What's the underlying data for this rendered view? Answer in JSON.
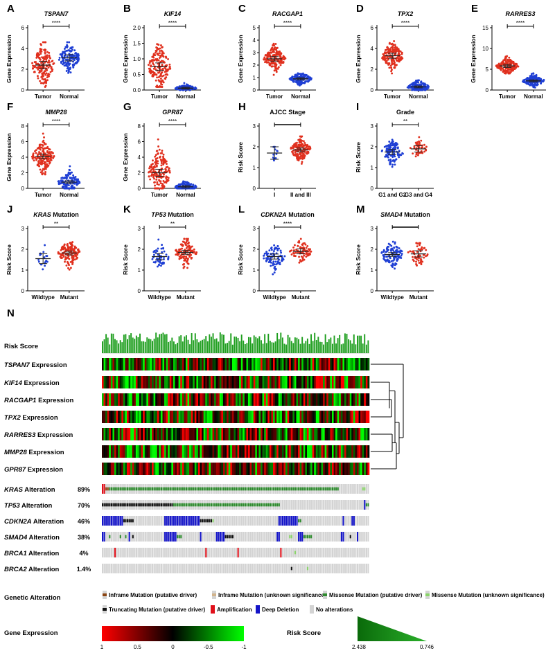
{
  "colors": {
    "tumor": "#e0301e",
    "normal": "#1f3fd4",
    "group1": "#1f3fd4",
    "group2": "#e0301e",
    "mean_bar": "#222222",
    "expr_high": "#ff0000",
    "expr_mid": "#000000",
    "expr_low": "#00ff00",
    "risk_bar": "#1e9e1e",
    "alt_missense": "#2e8b2e",
    "alt_missense_unknown": "#8ad36a",
    "alt_truncating": "#111111",
    "alt_amplification": "#e0101a",
    "alt_deletion": "#1414c8",
    "alt_none": "#d3d3d3",
    "alt_inframe": "#8b4513",
    "alt_inframe_unknown": "#d2b48c"
  },
  "chart_data": [
    {
      "panel": "A",
      "type": "scatter",
      "title": "TSPAN7",
      "title_italic": true,
      "ylabel": "Gene Expression",
      "categories": [
        "Tumor",
        "Normal"
      ],
      "ylim": [
        0,
        6
      ],
      "yticks": [
        "0",
        "2",
        "4",
        "6"
      ],
      "means": [
        2.4,
        3.1
      ],
      "sems": [
        0.12,
        0.1
      ],
      "spreads": [
        1.0,
        0.6
      ],
      "range_low": [
        0.3,
        1.2
      ],
      "range_high": [
        4.6,
        4.6
      ],
      "n": [
        170,
        140
      ],
      "significance": "****"
    },
    {
      "panel": "B",
      "type": "scatter",
      "title": "KIF14",
      "title_italic": true,
      "ylabel": "Gene Expression",
      "categories": [
        "Tumor",
        "Normal"
      ],
      "ylim": [
        0,
        2.0
      ],
      "yticks": [
        "0.0",
        "0.5",
        "1.0",
        "1.5",
        "2.0"
      ],
      "means": [
        0.75,
        0.06
      ],
      "sems": [
        0.04,
        0.01
      ],
      "spreads": [
        0.35,
        0.05
      ],
      "range_low": [
        0.1,
        0.0
      ],
      "range_high": [
        1.9,
        0.4
      ],
      "n": [
        170,
        140
      ],
      "significance": "****"
    },
    {
      "panel": "C",
      "type": "scatter",
      "title": "RACGAP1",
      "title_italic": true,
      "ylabel": "Gene Expression",
      "categories": [
        "Tumor",
        "Normal"
      ],
      "ylim": [
        0,
        5
      ],
      "yticks": [
        "0",
        "1",
        "2",
        "3",
        "4",
        "5"
      ],
      "means": [
        2.5,
        0.9
      ],
      "sems": [
        0.06,
        0.03
      ],
      "spreads": [
        0.45,
        0.25
      ],
      "range_low": [
        1.2,
        0.3
      ],
      "range_high": [
        4.3,
        2.0
      ],
      "n": [
        170,
        140
      ],
      "significance": "****"
    },
    {
      "panel": "D",
      "type": "scatter",
      "title": "TPX2",
      "title_italic": true,
      "ylabel": "Gene Expression",
      "categories": [
        "Tumor",
        "Normal"
      ],
      "ylim": [
        0,
        6
      ],
      "yticks": [
        "0",
        "2",
        "4",
        "6"
      ],
      "means": [
        3.3,
        0.3
      ],
      "sems": [
        0.08,
        0.03
      ],
      "spreads": [
        0.6,
        0.3
      ],
      "range_low": [
        1.0,
        0.0
      ],
      "range_high": [
        5.2,
        2.9
      ],
      "n": [
        170,
        140
      ],
      "significance": "****"
    },
    {
      "panel": "E",
      "type": "scatter",
      "title": "RARRES3",
      "title_italic": true,
      "ylabel": "Gene Expression",
      "categories": [
        "Tumor",
        "Normal"
      ],
      "ylim": [
        0,
        15
      ],
      "yticks": [
        "0",
        "5",
        "10",
        "15"
      ],
      "means": [
        5.8,
        2.2
      ],
      "sems": [
        0.12,
        0.08
      ],
      "spreads": [
        0.9,
        0.7
      ],
      "range_low": [
        4.0,
        0.6
      ],
      "range_high": [
        9.6,
        6.0
      ],
      "n": [
        170,
        140
      ],
      "significance": "****"
    },
    {
      "panel": "F",
      "type": "scatter",
      "title": "MMP28",
      "title_italic": true,
      "ylabel": "Gene Expression",
      "categories": [
        "Tumor",
        "Normal"
      ],
      "ylim": [
        0,
        8
      ],
      "yticks": [
        "0",
        "2",
        "4",
        "6",
        "8"
      ],
      "means": [
        4.1,
        0.8
      ],
      "sems": [
        0.1,
        0.06
      ],
      "spreads": [
        0.9,
        0.6
      ],
      "range_low": [
        1.8,
        0.0
      ],
      "range_high": [
        7.2,
        4.2
      ],
      "n": [
        170,
        140
      ],
      "significance": "****"
    },
    {
      "panel": "G",
      "type": "scatter",
      "title": "GPR87",
      "title_italic": true,
      "ylabel": "Gene Expression",
      "categories": [
        "Tumor",
        "Normal"
      ],
      "ylim": [
        0,
        8
      ],
      "yticks": [
        "0",
        "2",
        "4",
        "6",
        "8"
      ],
      "means": [
        2.0,
        0.2
      ],
      "sems": [
        0.15,
        0.05
      ],
      "spreads": [
        1.5,
        0.3
      ],
      "range_low": [
        0.0,
        0.0
      ],
      "range_high": [
        7.0,
        2.0
      ],
      "n": [
        170,
        140
      ],
      "significance": "****"
    },
    {
      "panel": "H",
      "type": "scatter",
      "title": "AJCC Stage",
      "title_italic": false,
      "ylabel": "Risk Score",
      "categories": [
        "I",
        "II and III"
      ],
      "ylim": [
        0,
        3
      ],
      "yticks": [
        "0",
        "1",
        "2",
        "3"
      ],
      "means": [
        1.7,
        1.85
      ],
      "sems": [
        0.1,
        0.03
      ],
      "spreads": [
        0.2,
        0.25
      ],
      "range_low": [
        1.3,
        0.8
      ],
      "range_high": [
        2.0,
        2.5
      ],
      "n": [
        12,
        150
      ],
      "significance": ""
    },
    {
      "panel": "I",
      "type": "scatter",
      "title": "Grade",
      "title_italic": false,
      "ylabel": "Risk Score",
      "categories": [
        "G1 and G2",
        "G3 and G4"
      ],
      "ylim": [
        0,
        3
      ],
      "yticks": [
        "0",
        "1",
        "2",
        "3"
      ],
      "means": [
        1.75,
        1.9
      ],
      "sems": [
        0.04,
        0.05
      ],
      "spreads": [
        0.28,
        0.22
      ],
      "range_low": [
        0.9,
        1.2
      ],
      "range_high": [
        2.6,
        2.5
      ],
      "n": [
        110,
        45
      ],
      "significance": "**"
    },
    {
      "panel": "J",
      "type": "scatter",
      "title": "KRAS",
      "title_suffix": " Mutation",
      "title_italic": true,
      "ylabel": "Risk Score",
      "categories": [
        "Wildtype",
        "Mutant"
      ],
      "ylim": [
        0,
        3
      ],
      "yticks": [
        "0",
        "1",
        "2",
        "3"
      ],
      "means": [
        1.55,
        1.82
      ],
      "sems": [
        0.08,
        0.03
      ],
      "spreads": [
        0.3,
        0.3
      ],
      "range_low": [
        1.0,
        0.8
      ],
      "range_high": [
        2.2,
        2.6
      ],
      "n": [
        18,
        150
      ],
      "significance": "**"
    },
    {
      "panel": "K",
      "type": "scatter",
      "title": "TP53",
      "title_suffix": " Mutation",
      "title_italic": true,
      "ylabel": "Risk Score",
      "categories": [
        "Wildtype",
        "Mutant"
      ],
      "ylim": [
        0,
        3
      ],
      "yticks": [
        "0",
        "1",
        "2",
        "3"
      ],
      "means": [
        1.65,
        1.85
      ],
      "sems": [
        0.05,
        0.03
      ],
      "spreads": [
        0.3,
        0.28
      ],
      "range_low": [
        0.8,
        0.8
      ],
      "range_high": [
        2.5,
        2.5
      ],
      "n": [
        50,
        120
      ],
      "significance": "**"
    },
    {
      "panel": "L",
      "type": "scatter",
      "title": "CDKN2A",
      "title_suffix": " Mutation",
      "title_italic": true,
      "ylabel": "Risk Score",
      "categories": [
        "Wildtype",
        "Mutant"
      ],
      "ylim": [
        0,
        3
      ],
      "yticks": [
        "0",
        "1",
        "2",
        "3"
      ],
      "means": [
        1.65,
        1.9
      ],
      "sems": [
        0.04,
        0.04
      ],
      "spreads": [
        0.3,
        0.25
      ],
      "range_low": [
        0.8,
        1.3
      ],
      "range_high": [
        2.5,
        2.5
      ],
      "n": [
        90,
        75
      ],
      "significance": "****"
    },
    {
      "panel": "M",
      "type": "scatter",
      "title": "SMAD4",
      "title_suffix": " Mutation",
      "title_italic": true,
      "ylabel": "Risk Score",
      "categories": [
        "Wildtype",
        "Mutant"
      ],
      "ylim": [
        0,
        3
      ],
      "yticks": [
        "0",
        "1",
        "2",
        "3"
      ],
      "means": [
        1.75,
        1.78
      ],
      "sems": [
        0.03,
        0.05
      ],
      "spreads": [
        0.3,
        0.25
      ],
      "range_low": [
        0.8,
        1.2
      ],
      "range_high": [
        2.5,
        2.3
      ],
      "n": [
        110,
        60
      ],
      "significance": ""
    }
  ],
  "heatmap": {
    "panel_label": "N",
    "n_samples": 150,
    "risk_label": "Risk Score",
    "expression_rows": [
      {
        "gene": "TSPAN7",
        "suffix": " Expression"
      },
      {
        "gene": "KIF14",
        "suffix": " Expression"
      },
      {
        "gene": "RACGAP1",
        "suffix": " Expression"
      },
      {
        "gene": "TPX2",
        "suffix": " Expression"
      },
      {
        "gene": "RARRES3",
        "suffix": " Expression"
      },
      {
        "gene": "MMP28",
        "suffix": " Expression"
      },
      {
        "gene": "GPR87",
        "suffix": " Expression"
      }
    ],
    "alteration_rows": [
      {
        "gene": "KRAS",
        "suffix": " Alteration",
        "pct": "89%"
      },
      {
        "gene": "TP53",
        "suffix": " Alteration",
        "pct": "70%"
      },
      {
        "gene": "CDKN2A",
        "suffix": " Alteration",
        "pct": "46%"
      },
      {
        "gene": "SMAD4",
        "suffix": " Alteration",
        "pct": "38%"
      },
      {
        "gene": "BRCA1",
        "suffix": " Alteration",
        "pct": "4%"
      },
      {
        "gene": "BRCA2",
        "suffix": " Alteration",
        "pct": "1.4%"
      }
    ],
    "legend": {
      "genetic_alteration_title": "Genetic Alteration",
      "items": [
        {
          "label": "Inframe Mutation (putative driver)",
          "color_key": "alt_inframe"
        },
        {
          "label": "Inframe Mutation (unknown significance)",
          "color_key": "alt_inframe_unknown"
        },
        {
          "label": "Missense Mutation (putative driver)",
          "color_key": "alt_missense"
        },
        {
          "label": "Missense Mutation (unknown significance)",
          "color_key": "alt_missense_unknown"
        },
        {
          "label": "Truncating Mutation (putative driver)",
          "color_key": "alt_truncating"
        },
        {
          "label": "Amplification",
          "color_key": "alt_amplification"
        },
        {
          "label": "Deep Deletion",
          "color_key": "alt_deletion"
        },
        {
          "label": "No alterations",
          "color_key": "alt_none"
        }
      ],
      "gene_expression_title": "Gene Expression",
      "gene_expression_ticks": [
        "1",
        "0.5",
        "0",
        "-0.5",
        "-1"
      ],
      "risk_score_title": "Risk Score",
      "risk_max": "2.438",
      "risk_min": "0.746"
    }
  }
}
